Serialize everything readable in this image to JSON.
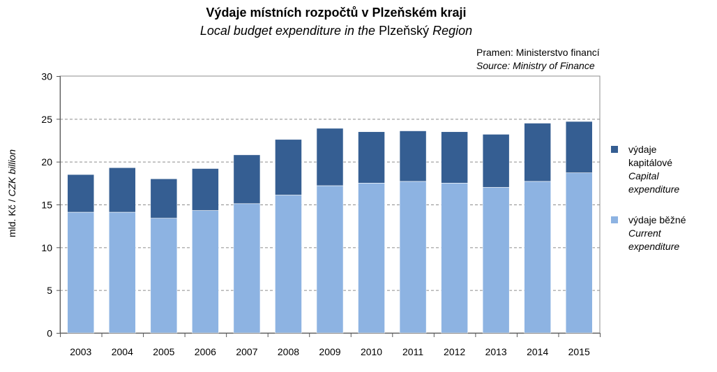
{
  "title": "Výdaje místních rozpočtů v Plzeňském kraji",
  "subtitle_part1": "Local budget expenditure in the ",
  "subtitle_part2": "Plzeňský",
  "subtitle_part3": " Region",
  "source_cz": "Pramen: Ministerstvo financí",
  "source_en": "Source: Ministry of Finance",
  "ylabel_cz": "mld. Kč / ",
  "ylabel_en": "CZK billion",
  "chart_data": {
    "type": "bar",
    "stacked": true,
    "categories": [
      "2003",
      "2004",
      "2005",
      "2006",
      "2007",
      "2008",
      "2009",
      "2010",
      "2011",
      "2012",
      "2013",
      "2014",
      "2015"
    ],
    "series": [
      {
        "name": "výdaje běžné / Current expenditure",
        "name_cz": "výdaje běžné",
        "name_en": "Current expenditure",
        "color": "#8DB3E2",
        "values": [
          14.1,
          14.1,
          13.4,
          14.3,
          15.1,
          16.1,
          17.2,
          17.5,
          17.7,
          17.5,
          17.0,
          17.7,
          18.7
        ]
      },
      {
        "name": "výdaje kapitálové / Capital expenditure",
        "name_cz": "výdaje kapitálové",
        "name_en": "Capital expenditure",
        "color": "#355E92",
        "values": [
          4.4,
          5.2,
          4.6,
          4.9,
          5.7,
          6.5,
          6.7,
          6.0,
          5.9,
          6.0,
          6.2,
          6.8,
          6.0
        ]
      }
    ],
    "ylim": [
      0,
      30
    ],
    "yticks": [
      0,
      5,
      10,
      15,
      20,
      25,
      30
    ],
    "grid": "horizontal dashed",
    "legend_position": "right"
  }
}
